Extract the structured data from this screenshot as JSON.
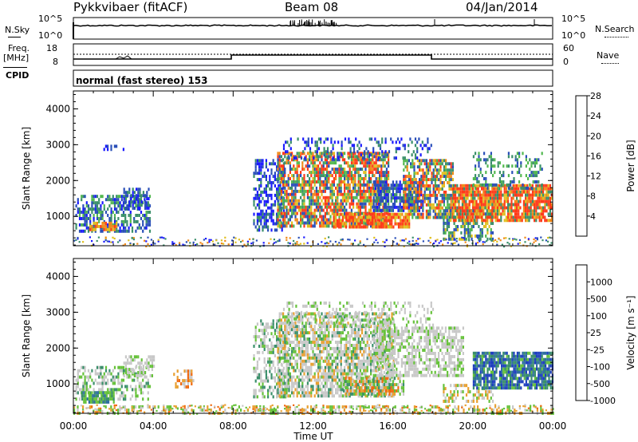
{
  "header": {
    "radar": "Pykkvibaer (fitACF)",
    "beam": "Beam 08",
    "date": "04/Jan/2014"
  },
  "panels": {
    "nsky_label": "N.Sky",
    "nsearch_label": "N.Search",
    "nsky_ticks": [
      "10^5",
      "10^0"
    ],
    "nsearch_ticks": [
      "10^5",
      "10^0"
    ],
    "freq_label": "Freq.",
    "freq_unit": "[MHz]",
    "freq_ticks": [
      "18",
      "8"
    ],
    "nave_label": "Nave",
    "nave_ticks": [
      "60",
      "0"
    ],
    "cpid_label": "CPID",
    "cpid_text": "normal (fast stereo) 153"
  },
  "chart_data": [
    {
      "type": "heatmap",
      "ylabel": "Slant Range [km]",
      "xlabel": "",
      "y_ticks": [
        1000,
        2000,
        3000,
        4000
      ],
      "ylim": [
        180,
        4500
      ],
      "colorbar_label": "Power [dB]",
      "colorbar_ticks": [
        4,
        8,
        12,
        16,
        20,
        24,
        28
      ],
      "colorbar_colors": [
        "#1a1aff",
        "#2a4fb8",
        "#3a8f6a",
        "#52b84f",
        "#e0c020",
        "#f08a1a",
        "#ff3b1a"
      ]
    },
    {
      "type": "heatmap",
      "ylabel": "Slant Range [km]",
      "xlabel": "Time UT",
      "x_ticks": [
        "00:00",
        "04:00",
        "08:00",
        "12:00",
        "16:00",
        "20:00",
        "00:00"
      ],
      "y_ticks": [
        1000,
        2000,
        3000,
        4000
      ],
      "ylim": [
        180,
        4500
      ],
      "colorbar_label": "Velocity [m s⁻¹]",
      "colorbar_ticks": [
        1000,
        500,
        100,
        25,
        -25,
        -100,
        -500,
        -1000
      ],
      "colorbar_colors": [
        "#1f3fbf",
        "#2f6f9f",
        "#3a8f6a",
        "#66c23a",
        "#c8c8c8",
        "#e8a030",
        "#f06a10",
        "#ff2a10"
      ]
    }
  ]
}
